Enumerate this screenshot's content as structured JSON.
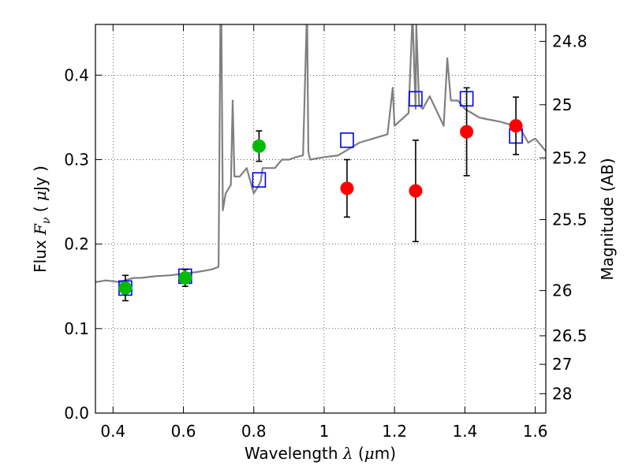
{
  "chart_data": {
    "type": "scatter",
    "xlabel": {
      "text": "Wavelength",
      "symbol": "λ",
      "unit_open": " (",
      "unit_mu": "μ",
      "unit_rest": "m)"
    },
    "ylabel": {
      "text": "Flux",
      "symbol": "F",
      "subscript": "ν",
      "unit_open": " ( ",
      "unit_mu": "μ",
      "unit_rest": "Jy )"
    },
    "y2label": "Magnitude (AB)",
    "xlim": [
      0.35,
      1.63
    ],
    "ylim": [
      0.0,
      0.46
    ],
    "grid": true,
    "x_ticks": [
      0.4,
      0.6,
      0.8,
      1.0,
      1.2,
      1.4,
      1.6
    ],
    "x_tick_labels": [
      "0.4",
      "0.6",
      "0.8",
      "1",
      "1.2",
      "1.4",
      "1.6"
    ],
    "y_ticks": [
      0.0,
      0.1,
      0.2,
      0.3,
      0.4
    ],
    "y_tick_labels": [
      "0.0",
      "0.1",
      "0.2",
      "0.3",
      "0.4"
    ],
    "y2_ticks": [
      {
        "label": "24.8",
        "flux": 0.44
      },
      {
        "label": "25",
        "flux": 0.365
      },
      {
        "label": "25.2",
        "flux": 0.302
      },
      {
        "label": "25.5",
        "flux": 0.229
      },
      {
        "label": "26",
        "flux": 0.145
      },
      {
        "label": "26.5",
        "flux": 0.0915
      },
      {
        "label": "27",
        "flux": 0.0577
      },
      {
        "label": "28",
        "flux": 0.023
      }
    ],
    "colors": {
      "model": "#808080",
      "model_photometry": "#0000ff",
      "optical": "#00bb00",
      "infrared": "#ff0000",
      "errorbar": "#000000"
    },
    "series": [
      {
        "kind": "line",
        "x": [
          0.35,
          0.38,
          0.42,
          0.44,
          0.46,
          0.48,
          0.52,
          0.56,
          0.6,
          0.64,
          0.68,
          0.7,
          0.705,
          0.708,
          0.712,
          0.72,
          0.735,
          0.74,
          0.745,
          0.76,
          0.78,
          0.8,
          0.815,
          0.82,
          0.825,
          0.84,
          0.86,
          0.88,
          0.9,
          0.92,
          0.94,
          0.95,
          0.952,
          0.955,
          0.96,
          1.0,
          1.04,
          1.08,
          1.1,
          1.14,
          1.18,
          1.195,
          1.2,
          1.24,
          1.25,
          1.252,
          1.26,
          1.262,
          1.27,
          1.28,
          1.3,
          1.34,
          1.35,
          1.36,
          1.38,
          1.4,
          1.42,
          1.44,
          1.46,
          1.5,
          1.54,
          1.56,
          1.58,
          1.6,
          1.63
        ],
        "y": [
          0.155,
          0.157,
          0.155,
          0.158,
          0.16,
          0.16,
          0.162,
          0.163,
          0.165,
          0.167,
          0.17,
          0.173,
          0.46,
          0.46,
          0.24,
          0.26,
          0.27,
          0.37,
          0.28,
          0.28,
          0.29,
          0.26,
          0.27,
          0.275,
          0.29,
          0.29,
          0.29,
          0.3,
          0.3,
          0.303,
          0.305,
          0.46,
          0.46,
          0.31,
          0.3,
          0.303,
          0.305,
          0.315,
          0.32,
          0.325,
          0.33,
          0.385,
          0.34,
          0.355,
          0.46,
          0.46,
          0.36,
          0.46,
          0.365,
          0.36,
          0.375,
          0.34,
          0.42,
          0.37,
          0.37,
          0.36,
          0.355,
          0.35,
          0.348,
          0.345,
          0.34,
          0.335,
          0.32,
          0.325,
          0.31
        ]
      },
      {
        "kind": "scatter",
        "marker": "open-square",
        "x": [
          0.435,
          0.605,
          0.815,
          1.065,
          1.26,
          1.405,
          1.545
        ],
        "y": [
          0.148,
          0.162,
          0.276,
          0.323,
          0.372,
          0.372,
          0.328
        ]
      },
      {
        "kind": "errorbar",
        "marker": "filled-circle",
        "color_key": "optical",
        "x": [
          0.435,
          0.605,
          0.815
        ],
        "y": [
          0.148,
          0.16,
          0.316
        ],
        "yerr": [
          0.015,
          0.01,
          0.018
        ]
      },
      {
        "kind": "errorbar",
        "marker": "filled-circle",
        "color_key": "infrared",
        "x": [
          1.065,
          1.26,
          1.405,
          1.545
        ],
        "y": [
          0.266,
          0.263,
          0.333,
          0.34
        ],
        "yerr": [
          0.034,
          0.06,
          0.052,
          0.034
        ]
      }
    ]
  }
}
